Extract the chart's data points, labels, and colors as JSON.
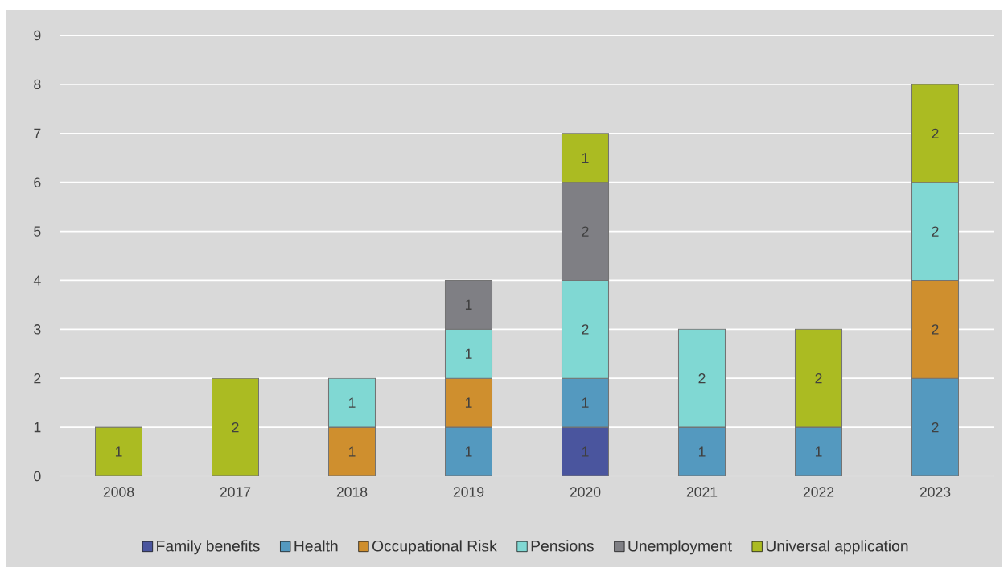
{
  "chart_data": {
    "type": "bar",
    "stacked": true,
    "categories": [
      "2008",
      "2017",
      "2018",
      "2019",
      "2020",
      "2021",
      "2022",
      "2023"
    ],
    "series": [
      {
        "name": "Family benefits",
        "color": "#4a559e",
        "values": [
          null,
          null,
          null,
          null,
          1,
          null,
          null,
          null
        ]
      },
      {
        "name": "Health",
        "color": "#5499bf",
        "values": [
          null,
          null,
          null,
          1,
          1,
          1,
          1,
          2
        ]
      },
      {
        "name": "Occupational Risk",
        "color": "#cf8f2e",
        "values": [
          null,
          null,
          1,
          1,
          null,
          null,
          null,
          2
        ]
      },
      {
        "name": "Pensions",
        "color": "#80d8d3",
        "values": [
          null,
          null,
          1,
          1,
          2,
          2,
          null,
          2
        ]
      },
      {
        "name": "Unemployment",
        "color": "#7f7f84",
        "values": [
          null,
          null,
          null,
          1,
          2,
          null,
          null,
          null
        ]
      },
      {
        "name": "Universal application",
        "color": "#abbb22",
        "values": [
          1,
          2,
          null,
          null,
          1,
          null,
          2,
          2
        ]
      }
    ],
    "ylim": [
      0,
      9
    ],
    "yticks": [
      0,
      1,
      2,
      3,
      4,
      5,
      6,
      7,
      8,
      9
    ],
    "grid": "y",
    "legend": "bottom",
    "data_labels": true
  }
}
